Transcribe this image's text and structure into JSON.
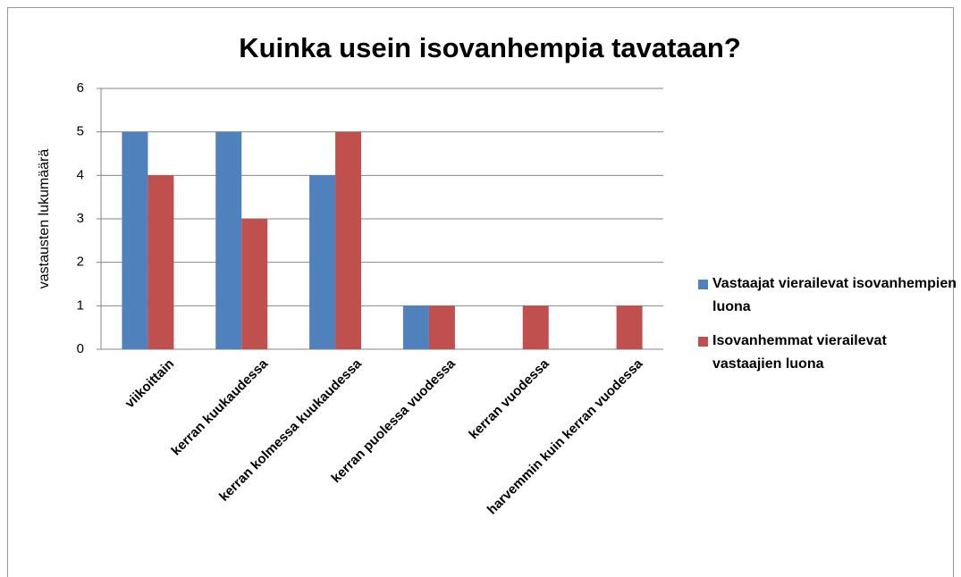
{
  "chart_data": {
    "type": "bar",
    "title": "Kuinka usein isovanhempia tavataan?",
    "y_label": "vastausten lukumäärä",
    "categories": [
      "viikoittain",
      "kerran kuukaudessa",
      "kerran kolmessa kuukaudessa",
      "kerran puolessa vuodessa",
      "kerran vuodessa",
      "harvemmin kuin kerran vuodessa"
    ],
    "series": [
      {
        "name": "Vastaajat vierailevat isovanhempien luona",
        "color": "#4f81bd",
        "values": [
          5,
          5,
          4,
          1,
          0,
          0
        ]
      },
      {
        "name": "Isovanhemmat vierailevat vastaajien luona",
        "color": "#c0504d",
        "values": [
          4,
          3,
          5,
          1,
          1,
          1
        ]
      }
    ],
    "ylim": [
      0,
      6
    ],
    "yticks": [
      0,
      1,
      2,
      3,
      4,
      5,
      6
    ],
    "grid": true,
    "legend": "right"
  }
}
